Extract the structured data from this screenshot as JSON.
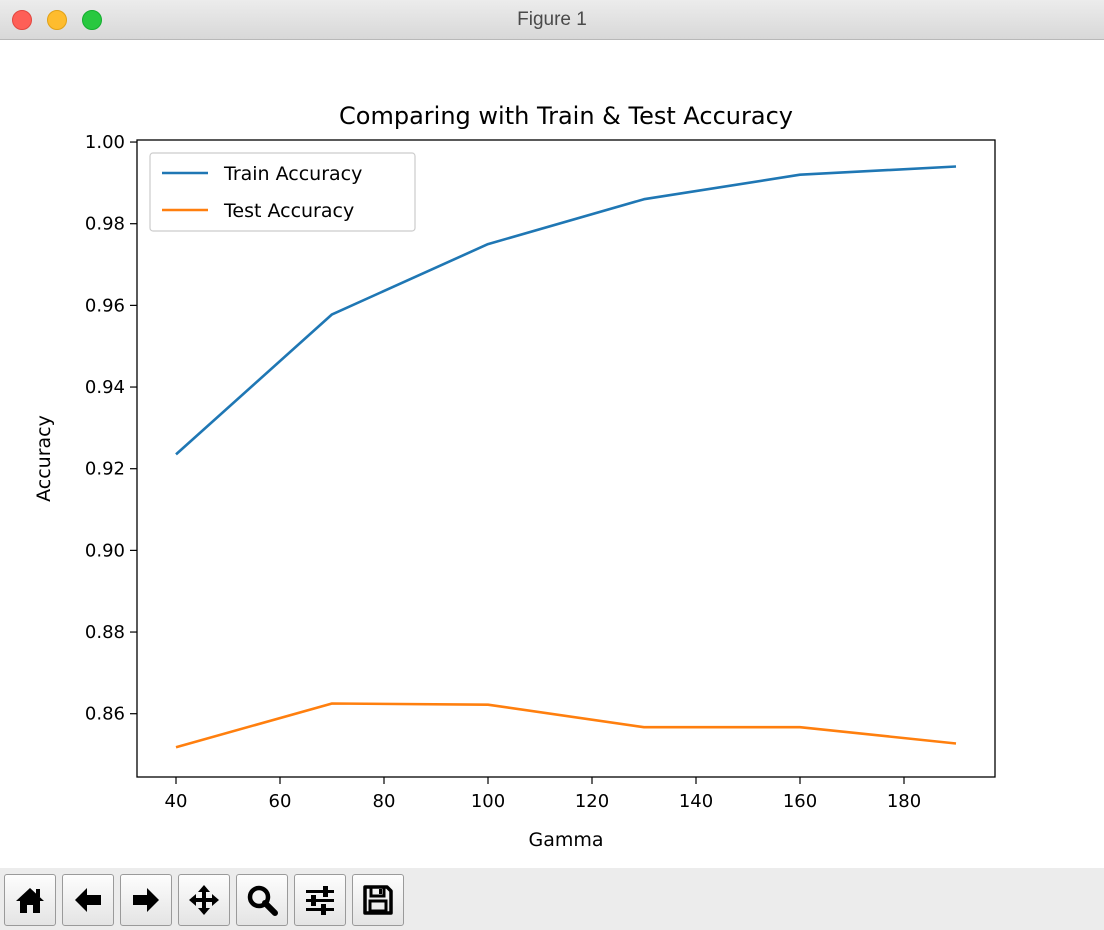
{
  "window": {
    "title": "Figure 1"
  },
  "chart_data": {
    "type": "line",
    "title": "Comparing with Train & Test Accuracy",
    "xlabel": "Gamma",
    "ylabel": "Accuracy",
    "xlim": [
      32.5,
      197.5
    ],
    "ylim": [
      0.8445,
      1.0005
    ],
    "xticks": [
      40,
      60,
      80,
      100,
      120,
      140,
      160,
      180
    ],
    "yticks": [
      0.86,
      0.88,
      0.9,
      0.92,
      0.94,
      0.96,
      0.98,
      1.0
    ],
    "ytick_labels": [
      "0.86",
      "0.88",
      "0.90",
      "0.92",
      "0.94",
      "0.96",
      "0.98",
      "1.00"
    ],
    "x": [
      40,
      70,
      100,
      130,
      160,
      190
    ],
    "series": [
      {
        "name": "Train Accuracy",
        "color": "#1f77b4",
        "values": [
          0.9235,
          0.9578,
          0.975,
          0.986,
          0.992,
          0.994
        ]
      },
      {
        "name": "Test Accuracy",
        "color": "#ff7f0e",
        "values": [
          0.8518,
          0.8625,
          0.8622,
          0.8567,
          0.8567,
          0.8527
        ]
      }
    ],
    "legend": "upper-left",
    "grid": false
  },
  "toolbar": {
    "buttons": [
      {
        "name": "home-button",
        "icon": "home-icon"
      },
      {
        "name": "back-button",
        "icon": "arrow-left-icon"
      },
      {
        "name": "forward-button",
        "icon": "arrow-right-icon"
      },
      {
        "name": "pan-button",
        "icon": "move-icon"
      },
      {
        "name": "zoom-button",
        "icon": "magnifier-icon"
      },
      {
        "name": "configure-subplots-button",
        "icon": "sliders-icon"
      },
      {
        "name": "save-button",
        "icon": "floppy-disk-icon"
      }
    ]
  }
}
